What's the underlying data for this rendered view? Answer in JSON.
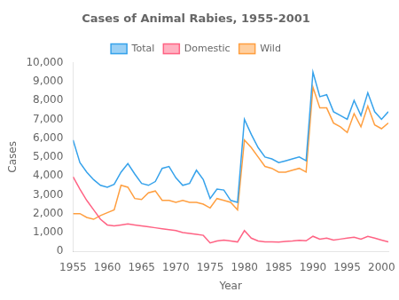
{
  "chart_data": {
    "type": "line",
    "title": "Cases of Animal Rabies, 1955-2001",
    "xlabel": "Year",
    "ylabel": "Cases",
    "x": [
      1955,
      1956,
      1957,
      1958,
      1959,
      1960,
      1961,
      1962,
      1963,
      1964,
      1965,
      1966,
      1967,
      1968,
      1969,
      1970,
      1971,
      1972,
      1973,
      1974,
      1975,
      1976,
      1977,
      1978,
      1979,
      1980,
      1981,
      1982,
      1983,
      1984,
      1985,
      1986,
      1987,
      1988,
      1989,
      1990,
      1991,
      1992,
      1993,
      1994,
      1995,
      1996,
      1997,
      1998,
      1999,
      2000,
      2001
    ],
    "series": [
      {
        "name": "Total",
        "values": [
          5900,
          4700,
          4200,
          3800,
          3500,
          3400,
          3550,
          4200,
          4650,
          4100,
          3600,
          3500,
          3700,
          4400,
          4500,
          3900,
          3500,
          3600,
          4300,
          3800,
          2800,
          3300,
          3250,
          2700,
          2600,
          7000,
          6200,
          5500,
          5000,
          4900,
          4700,
          4800,
          4900,
          5000,
          4800,
          9500,
          8200,
          8300,
          7400,
          7200,
          7000,
          8000,
          7200,
          8400,
          7400,
          7000,
          7400
        ]
      },
      {
        "name": "Domestic",
        "values": [
          3950,
          3300,
          2700,
          2200,
          1700,
          1400,
          1350,
          1400,
          1450,
          1400,
          1350,
          1300,
          1250,
          1200,
          1150,
          1100,
          1000,
          950,
          900,
          850,
          450,
          550,
          600,
          550,
          500,
          1100,
          700,
          550,
          500,
          500,
          490,
          530,
          550,
          580,
          560,
          800,
          650,
          700,
          600,
          650,
          700,
          750,
          650,
          800,
          700,
          600,
          500
        ]
      },
      {
        "name": "Wild",
        "values": [
          2000,
          2000,
          1800,
          1700,
          1900,
          2050,
          2200,
          3500,
          3400,
          2800,
          2750,
          3100,
          3200,
          2700,
          2700,
          2600,
          2700,
          2600,
          2600,
          2500,
          2300,
          2800,
          2700,
          2600,
          2200,
          5900,
          5500,
          5000,
          4500,
          4400,
          4200,
          4200,
          4300,
          4400,
          4200,
          8700,
          7600,
          7600,
          6800,
          6600,
          6300,
          7300,
          6600,
          7700,
          6700,
          6500,
          6800
        ]
      }
    ],
    "xlim": [
      1955,
      2001
    ],
    "xticks": [
      1955,
      1960,
      1965,
      1970,
      1975,
      1980,
      1985,
      1990,
      1995,
      2000
    ],
    "ylim": [
      0,
      10000
    ],
    "yticks": [
      0,
      {
        "value": 1000,
        "label": "1,000"
      },
      {
        "value": 2000,
        "label": "2,000"
      },
      {
        "value": 3000,
        "label": "3,000"
      },
      {
        "value": 4000,
        "label": "4,000"
      },
      {
        "value": 5000,
        "label": "5,000"
      },
      {
        "value": 6000,
        "label": "6,000"
      },
      {
        "value": 7000,
        "label": "7,000"
      },
      {
        "value": 8000,
        "label": "8,000"
      },
      {
        "value": 9000,
        "label": "9,000"
      },
      {
        "value": 10000,
        "label": "10,000"
      }
    ],
    "grid": false,
    "legend": "top"
  }
}
